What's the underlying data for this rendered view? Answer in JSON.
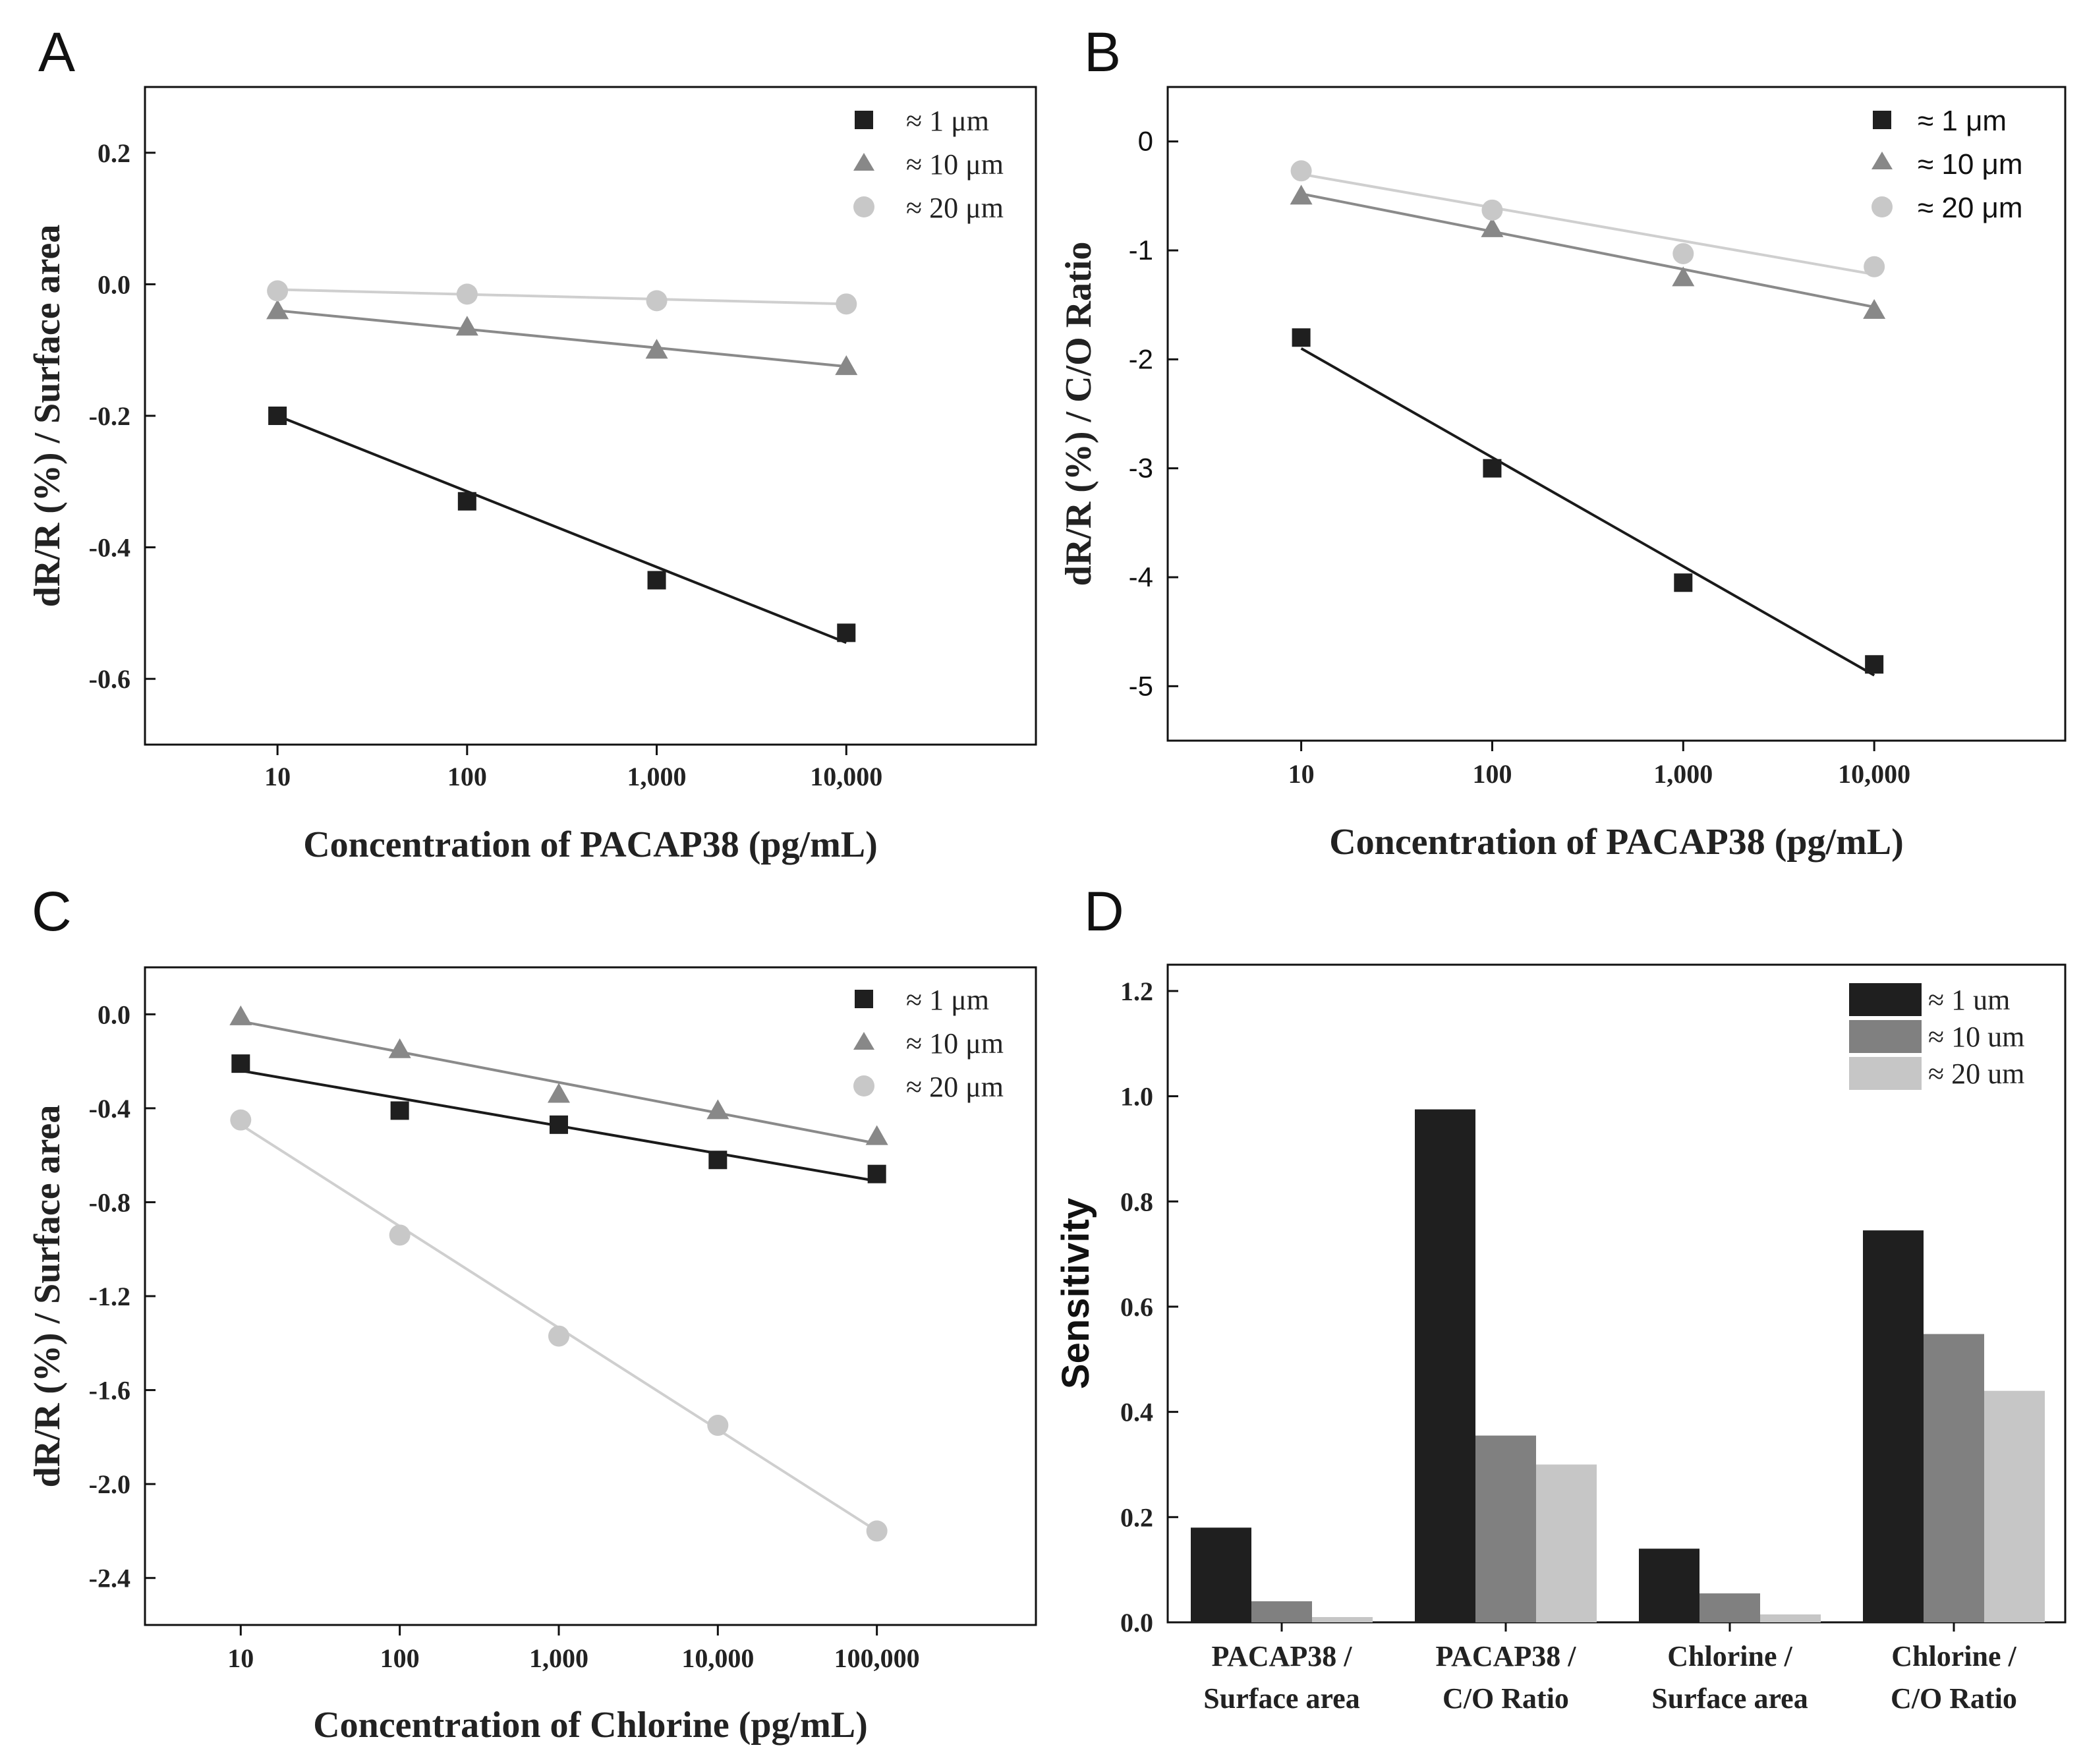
{
  "colors": {
    "um1": "#1f1f1f",
    "um10": "#888888",
    "um20": "#c8c8c8",
    "line1": "#1a1a1a",
    "line10": "#8a8a8a",
    "line20": "#cfcfcf",
    "frame": "#111111"
  },
  "chart_data": [
    {
      "panel": "A",
      "type": "scatter",
      "xscale": "log",
      "categories": [
        "10",
        "100",
        "1,000",
        "10,000"
      ],
      "x": [
        10,
        100,
        1000,
        10000
      ],
      "xlim": [
        2,
        100000
      ],
      "ylim": [
        -0.7,
        0.3
      ],
      "yticks": [
        -0.6,
        -0.4,
        -0.2,
        0.0,
        0.2
      ],
      "ytick_labels": [
        "-0.6",
        "-0.4",
        "-0.2",
        "0.0",
        "0.2"
      ],
      "xlabel": "Concentration of PACAP38 (pg/mL)",
      "ylabel": "dR/R (%) / Surface area",
      "legend_position": "top-right",
      "series": [
        {
          "name": "≈ 1 μm",
          "marker": "square",
          "color": "#1f1f1f",
          "values": [
            -0.2,
            -0.33,
            -0.45,
            -0.53
          ],
          "fit": [
            -0.2,
            -0.545
          ]
        },
        {
          "name": "≈ 10 μm",
          "marker": "triangle",
          "color": "#888888",
          "values": [
            -0.04,
            -0.065,
            -0.1,
            -0.125
          ],
          "fit": [
            -0.04,
            -0.125
          ]
        },
        {
          "name": "≈ 20 μm",
          "marker": "circle",
          "color": "#c8c8c8",
          "values": [
            -0.01,
            -0.015,
            -0.025,
            -0.03
          ],
          "fit": [
            -0.008,
            -0.03
          ]
        }
      ]
    },
    {
      "panel": "B",
      "type": "scatter",
      "xscale": "log",
      "categories": [
        "10",
        "100",
        "1,000",
        "10,000"
      ],
      "x": [
        10,
        100,
        1000,
        10000
      ],
      "xlim": [
        2,
        100000
      ],
      "ylim": [
        -5.5,
        0.5
      ],
      "yticks": [
        -5,
        -4,
        -3,
        -2,
        -1,
        0
      ],
      "ytick_labels": [
        "-5",
        "-4",
        "-3",
        "-2",
        "-1",
        "0"
      ],
      "xlabel": "Concentration of PACAP38 (pg/mL)",
      "ylabel": "dR/R (%) / C/O Ratio",
      "legend_position": "top-right",
      "series": [
        {
          "name": "≈ 1 μm",
          "marker": "square",
          "color": "#1f1f1f",
          "values": [
            -1.8,
            -3.0,
            -4.05,
            -4.8
          ],
          "fit": [
            -1.9,
            -4.9
          ]
        },
        {
          "name": "≈ 10 μm",
          "marker": "triangle",
          "color": "#888888",
          "values": [
            -0.5,
            -0.8,
            -1.25,
            -1.55
          ],
          "fit": [
            -0.48,
            -1.52
          ]
        },
        {
          "name": "≈ 20 μm",
          "marker": "circle",
          "color": "#c8c8c8",
          "values": [
            -0.27,
            -0.63,
            -1.03,
            -1.15
          ],
          "fit": [
            -0.3,
            -1.22
          ]
        }
      ]
    },
    {
      "panel": "C",
      "type": "scatter",
      "xscale": "log",
      "categories": [
        "10",
        "100",
        "1,000",
        "10,000",
        "100,000"
      ],
      "x": [
        10,
        100,
        1000,
        10000,
        100000
      ],
      "xlim": [
        2.5,
        1000000
      ],
      "ylim": [
        -2.6,
        0.2
      ],
      "yticks": [
        -2.4,
        -2.0,
        -1.6,
        -1.2,
        -0.8,
        -0.4,
        0.0
      ],
      "ytick_labels": [
        "-2.4",
        "-2.0",
        "-1.6",
        "-1.2",
        "-0.8",
        "-0.4",
        "0.0"
      ],
      "xlabel": "Concentration of Chlorine (pg/mL)",
      "ylabel": "dR/R (%) / Surface area",
      "legend_position": "top-right",
      "series": [
        {
          "name": "≈ 1 μm",
          "marker": "square",
          "color": "#1f1f1f",
          "values": [
            -0.21,
            -0.41,
            -0.47,
            -0.62,
            -0.68
          ],
          "fit": [
            -0.24,
            -0.71
          ]
        },
        {
          "name": "≈ 10 μm",
          "marker": "triangle",
          "color": "#888888",
          "values": [
            -0.01,
            -0.15,
            -0.34,
            -0.41,
            -0.52
          ],
          "fit": [
            -0.03,
            -0.55
          ]
        },
        {
          "name": "≈ 20 μm",
          "marker": "circle",
          "color": "#c8c8c8",
          "values": [
            -0.45,
            -0.94,
            -1.37,
            -1.75,
            -2.2
          ],
          "fit": [
            -0.47,
            -2.2
          ]
        }
      ]
    },
    {
      "panel": "D",
      "type": "bar",
      "categories": [
        [
          "PACAP38 /",
          "Surface area"
        ],
        [
          "PACAP38 /",
          "C/O Ratio"
        ],
        [
          "Chlorine /",
          "Surface area"
        ],
        [
          "Chlorine /",
          "C/O Ratio"
        ]
      ],
      "ylim": [
        0,
        1.25
      ],
      "yticks": [
        0.0,
        0.2,
        0.4,
        0.6,
        0.8,
        1.0,
        1.2
      ],
      "ytick_labels": [
        "0.0",
        "0.2",
        "0.4",
        "0.6",
        "0.8",
        "1.0",
        "1.2"
      ],
      "xlabel": "",
      "ylabel": "Sensitivity",
      "legend_position": "top-right",
      "series": [
        {
          "name": "≈ 1 um",
          "color": "#1f1f1f",
          "values": [
            0.18,
            0.975,
            0.14,
            0.745
          ]
        },
        {
          "name": "≈ 10 um",
          "color": "#808080",
          "values": [
            0.04,
            0.355,
            0.055,
            0.548
          ]
        },
        {
          "name": "≈ 20 um",
          "color": "#c6c6c6",
          "values": [
            0.01,
            0.3,
            0.015,
            0.44
          ]
        }
      ]
    }
  ]
}
